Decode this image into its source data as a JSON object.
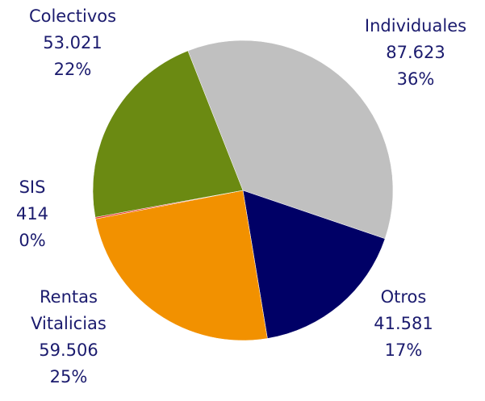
{
  "chart_data": {
    "type": "pie",
    "categories": [
      "Individuales",
      "Otros",
      "Rentas Vitalicias",
      "SIS",
      "Colectivos"
    ],
    "values": [
      87623,
      41581,
      59506,
      414,
      53021
    ],
    "value_labels": [
      "87.623",
      "41.581",
      "59.506",
      "414",
      "53.021"
    ],
    "percent_labels": [
      "36%",
      "17%",
      "25%",
      "0%",
      "22%"
    ],
    "colors": [
      "#c0c0c0",
      "#000066",
      "#f29100",
      "#e8382f",
      "#6b8a12"
    ]
  }
}
